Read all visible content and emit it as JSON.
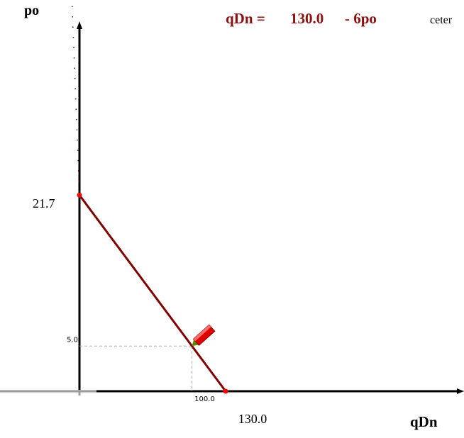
{
  "chart_data": {
    "type": "line",
    "title": "",
    "ylabel": "po",
    "xlabel": "qDn",
    "equation": {
      "lhs": "qDn =",
      "intercept_text": "130.0",
      "slope_text": "- 6po"
    },
    "side_text": "ceter",
    "series": [
      {
        "x": [
          0,
          130.0
        ],
        "y": [
          21.7,
          0
        ]
      }
    ],
    "extension": {
      "x": [
        -10,
        0
      ],
      "y": [
        23.4,
        21.7
      ]
    },
    "marker": {
      "x": 100.0,
      "y": 5.0
    },
    "tick_labels": {
      "y_intercept": "21.7",
      "x_intercept": "130.0",
      "marker_x": "100.0",
      "marker_y": "5.0"
    },
    "xlim": [
      -70,
      347
    ],
    "ylim": [
      0,
      78
    ],
    "grid": false,
    "colors": {
      "demand_line": "#800000",
      "endpoint": "#ff0000",
      "pencil_body": "#e00000",
      "pencil_tip": "#5a8a00",
      "axis": "#000000"
    }
  }
}
